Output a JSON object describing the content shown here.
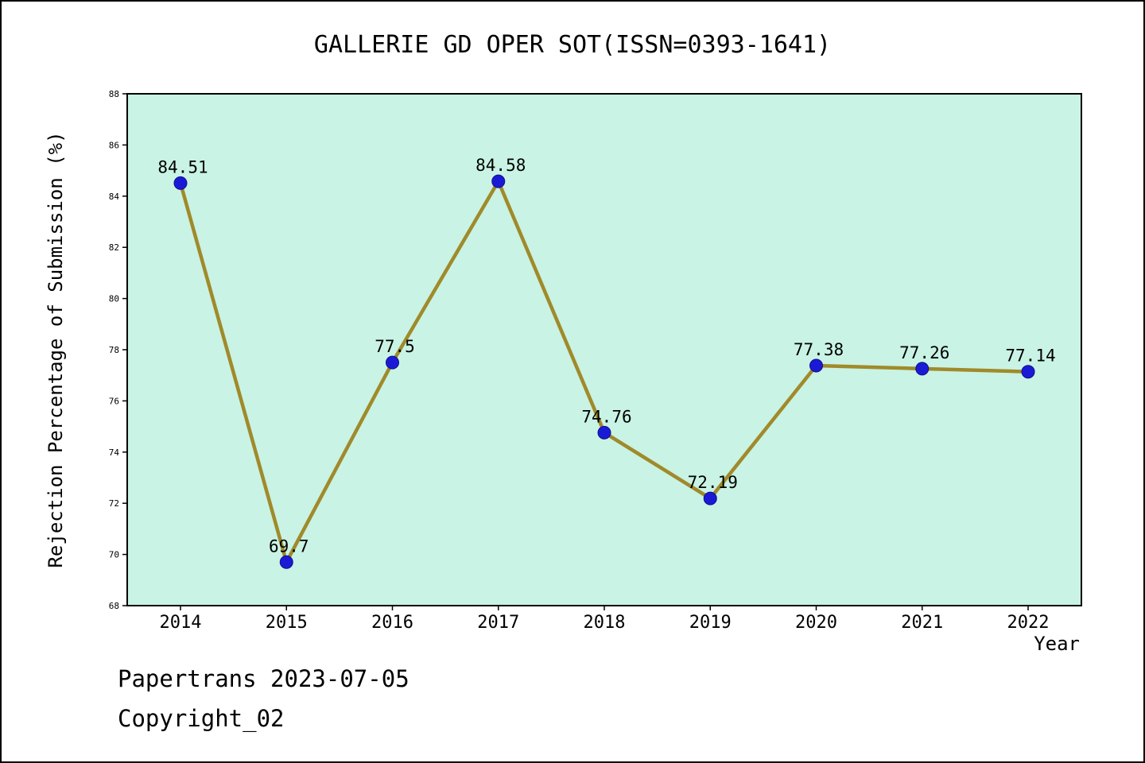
{
  "footer": {
    "line1": "Papertrans 2023-07-05",
    "line2": "Copyright_02"
  },
  "chart_data": {
    "type": "line",
    "title": "GALLERIE GD OPER SOT(ISSN=0393-1641)",
    "xlabel": "Year",
    "ylabel": "Rejection Percentage of Submission (%)",
    "x": [
      2014,
      2015,
      2016,
      2017,
      2018,
      2019,
      2020,
      2021,
      2022
    ],
    "values": [
      84.51,
      69.7,
      77.5,
      84.58,
      74.76,
      72.19,
      77.38,
      77.26,
      77.14
    ],
    "labels": [
      "84.51",
      "69.7",
      "77.5",
      "84.58",
      "74.76",
      "72.19",
      "77.38",
      "77.26",
      "77.14"
    ],
    "ylim": [
      68,
      88
    ],
    "ytick_step": 2,
    "legend": "none",
    "grid": "off",
    "colors": {
      "plot_bg": "#c9f3e4",
      "line": "#a08a2a",
      "marker": "#1a1ad6",
      "axis": "#000000"
    }
  }
}
